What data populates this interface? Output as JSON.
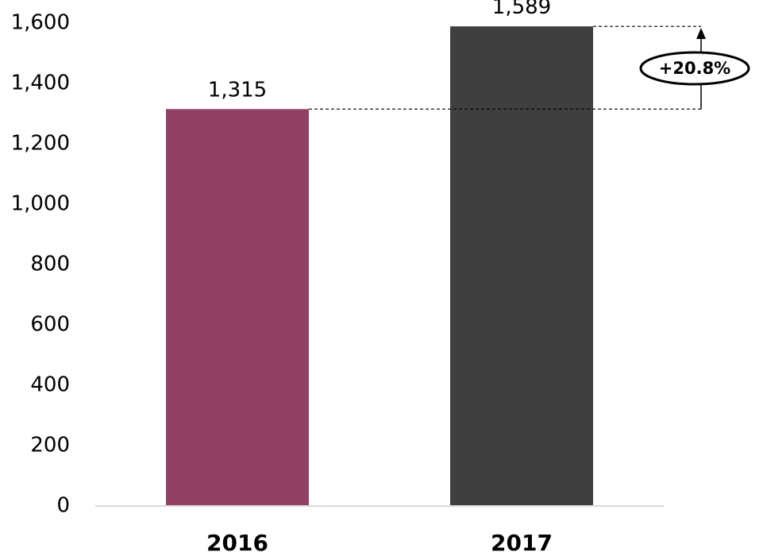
{
  "chart_data": {
    "type": "bar",
    "categories": [
      "2016",
      "2017"
    ],
    "values": [
      1315,
      1589
    ],
    "value_labels": [
      "1,315",
      "1,589"
    ],
    "colors": [
      "#924165",
      "#3f3f3f"
    ],
    "ylim": [
      0,
      1600
    ],
    "yticks": [
      0,
      200,
      400,
      600,
      800,
      1000,
      1200,
      1400,
      1600
    ],
    "ytick_labels": [
      "0",
      "200",
      "400",
      "600",
      "800",
      "1,000",
      "1,200",
      "1,400",
      "1,600"
    ],
    "grid": false,
    "annotation": {
      "text": "+20.8%",
      "from_category": "2016",
      "to_category": "2017"
    }
  }
}
